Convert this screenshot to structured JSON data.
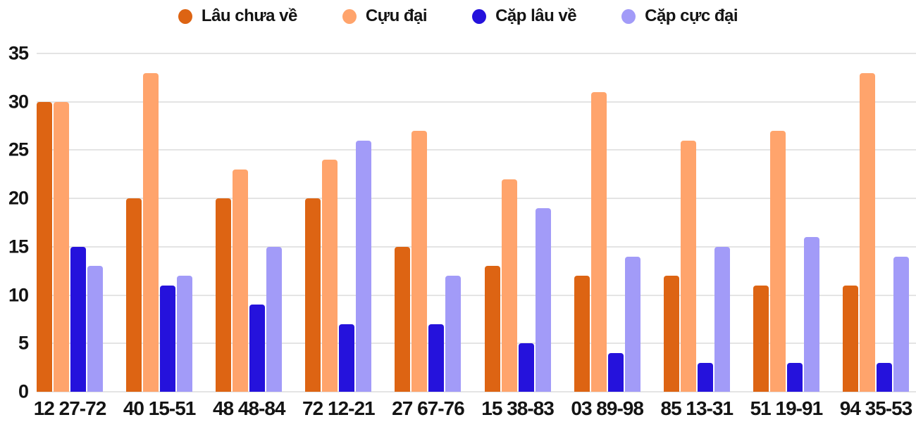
{
  "chart_data": {
    "type": "bar",
    "title": "",
    "xlabel": "",
    "ylabel": "",
    "categories": [
      "12 27-72",
      "40 15-51",
      "48 48-84",
      "72 12-21",
      "27 67-76",
      "15 38-83",
      "03 89-98",
      "85 13-31",
      "51 19-91",
      "94 35-53"
    ],
    "series": [
      {
        "name": "Lâu chưa về",
        "color": "#DD6413",
        "values": [
          30,
          20,
          20,
          20,
          15,
          13,
          12,
          12,
          11,
          11
        ]
      },
      {
        "name": "Cựu đại",
        "color": "#FFA46C",
        "values": [
          30,
          33,
          23,
          24,
          27,
          22,
          31,
          26,
          27,
          33
        ]
      },
      {
        "name": "Cặp lâu về",
        "color": "#2512DC",
        "values": [
          15,
          11,
          9,
          7,
          7,
          5,
          4,
          3,
          3,
          3
        ]
      },
      {
        "name": "Cặp cực đại",
        "color": "#A29BF8",
        "values": [
          13,
          12,
          15,
          26,
          12,
          19,
          14,
          15,
          16,
          14
        ]
      }
    ],
    "ylim": [
      0,
      35
    ],
    "yticks": [
      0,
      5,
      10,
      15,
      20,
      25,
      30,
      35
    ],
    "grid": true,
    "legend_position": "top",
    "background_color": "#ffffff",
    "gridline_color": "#e4e4e4",
    "text_color": "#141414"
  }
}
